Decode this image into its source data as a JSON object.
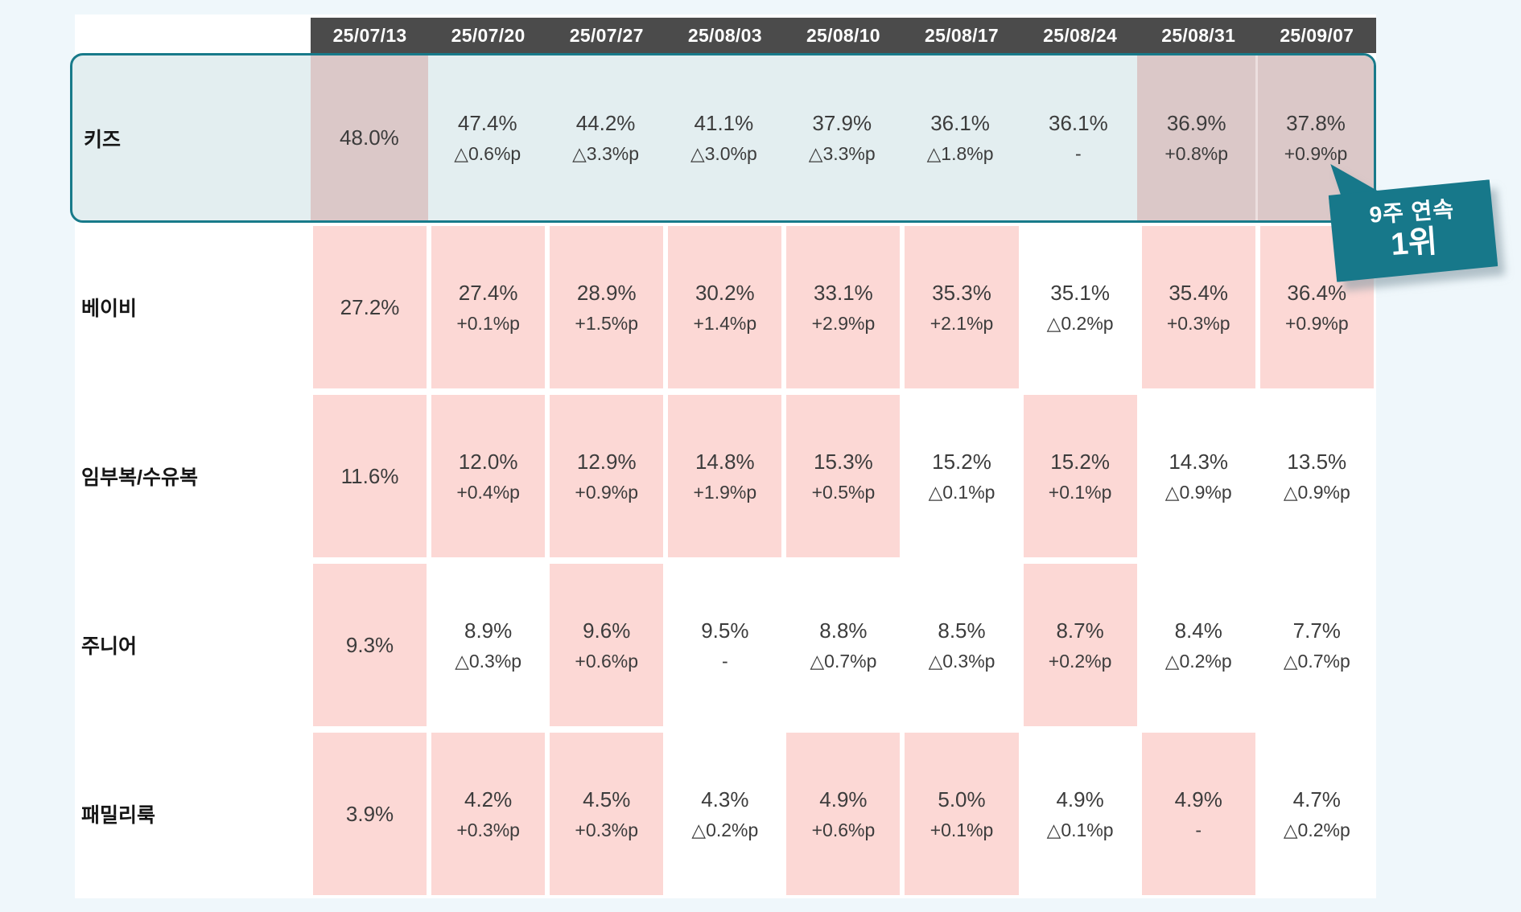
{
  "badge": {
    "line1": "9주 연속",
    "line2": "1위"
  },
  "colors": {
    "page_bg": "#eff7fb",
    "header_bg": "#4b4b4b",
    "header_text": "#ffffff",
    "kids_row_bg": "#e3eef0",
    "kids_highlight_cell": "#dbc8c8",
    "pink_highlight_cell": "#fcd8d5",
    "accent_teal": "#17788a",
    "value_text": "#3c3c3c"
  },
  "table": {
    "columns": [
      "25/07/13",
      "25/07/20",
      "25/07/27",
      "25/08/03",
      "25/08/10",
      "25/08/17",
      "25/08/24",
      "25/08/31",
      "25/09/07"
    ],
    "rows": [
      {
        "label": "키즈",
        "kids": true,
        "cells": [
          {
            "v": "48.0%",
            "d": "",
            "hl": true
          },
          {
            "v": "47.4%",
            "d": "△0.6%p",
            "hl": false
          },
          {
            "v": "44.2%",
            "d": "△3.3%p",
            "hl": false
          },
          {
            "v": "41.1%",
            "d": "△3.0%p",
            "hl": false
          },
          {
            "v": "37.9%",
            "d": "△3.3%p",
            "hl": false
          },
          {
            "v": "36.1%",
            "d": "△1.8%p",
            "hl": false
          },
          {
            "v": "36.1%",
            "d": "-",
            "hl": false
          },
          {
            "v": "36.9%",
            "d": "+0.8%p",
            "hl": true
          },
          {
            "v": "37.8%",
            "d": "+0.9%p",
            "hl": true
          }
        ]
      },
      {
        "label": "베이비",
        "kids": false,
        "cells": [
          {
            "v": "27.2%",
            "d": "",
            "hl": true
          },
          {
            "v": "27.4%",
            "d": "+0.1%p",
            "hl": true
          },
          {
            "v": "28.9%",
            "d": "+1.5%p",
            "hl": true
          },
          {
            "v": "30.2%",
            "d": "+1.4%p",
            "hl": true
          },
          {
            "v": "33.1%",
            "d": "+2.9%p",
            "hl": true
          },
          {
            "v": "35.3%",
            "d": "+2.1%p",
            "hl": true
          },
          {
            "v": "35.1%",
            "d": "△0.2%p",
            "hl": false
          },
          {
            "v": "35.4%",
            "d": "+0.3%p",
            "hl": true
          },
          {
            "v": "36.4%",
            "d": "+0.9%p",
            "hl": true
          }
        ]
      },
      {
        "label": "임부복/수유복",
        "kids": false,
        "cells": [
          {
            "v": "11.6%",
            "d": "",
            "hl": true
          },
          {
            "v": "12.0%",
            "d": "+0.4%p",
            "hl": true
          },
          {
            "v": "12.9%",
            "d": "+0.9%p",
            "hl": true
          },
          {
            "v": "14.8%",
            "d": "+1.9%p",
            "hl": true
          },
          {
            "v": "15.3%",
            "d": "+0.5%p",
            "hl": true
          },
          {
            "v": "15.2%",
            "d": "△0.1%p",
            "hl": false
          },
          {
            "v": "15.2%",
            "d": "+0.1%p",
            "hl": true
          },
          {
            "v": "14.3%",
            "d": "△0.9%p",
            "hl": false
          },
          {
            "v": "13.5%",
            "d": "△0.9%p",
            "hl": false
          }
        ]
      },
      {
        "label": "주니어",
        "kids": false,
        "cells": [
          {
            "v": "9.3%",
            "d": "",
            "hl": true
          },
          {
            "v": "8.9%",
            "d": "△0.3%p",
            "hl": false
          },
          {
            "v": "9.6%",
            "d": "+0.6%p",
            "hl": true
          },
          {
            "v": "9.5%",
            "d": "-",
            "hl": false
          },
          {
            "v": "8.8%",
            "d": "△0.7%p",
            "hl": false
          },
          {
            "v": "8.5%",
            "d": "△0.3%p",
            "hl": false
          },
          {
            "v": "8.7%",
            "d": "+0.2%p",
            "hl": true
          },
          {
            "v": "8.4%",
            "d": "△0.2%p",
            "hl": false
          },
          {
            "v": "7.7%",
            "d": "△0.7%p",
            "hl": false
          }
        ]
      },
      {
        "label": "패밀리룩",
        "kids": false,
        "cells": [
          {
            "v": "3.9%",
            "d": "",
            "hl": true
          },
          {
            "v": "4.2%",
            "d": "+0.3%p",
            "hl": true
          },
          {
            "v": "4.5%",
            "d": "+0.3%p",
            "hl": true
          },
          {
            "v": "4.3%",
            "d": "△0.2%p",
            "hl": false
          },
          {
            "v": "4.9%",
            "d": "+0.6%p",
            "hl": true
          },
          {
            "v": "5.0%",
            "d": "+0.1%p",
            "hl": true
          },
          {
            "v": "4.9%",
            "d": "△0.1%p",
            "hl": false
          },
          {
            "v": "4.9%",
            "d": "-",
            "hl": true
          },
          {
            "v": "4.7%",
            "d": "△0.2%p",
            "hl": false
          }
        ]
      }
    ]
  },
  "chart_data": {
    "type": "table",
    "columns": [
      "25/07/13",
      "25/07/20",
      "25/07/27",
      "25/08/03",
      "25/08/10",
      "25/08/17",
      "25/08/24",
      "25/08/31",
      "25/09/07"
    ],
    "series": [
      {
        "name": "키즈",
        "values": [
          48.0,
          47.4,
          44.2,
          41.1,
          37.9,
          36.1,
          36.1,
          36.9,
          37.8
        ],
        "deltas": [
          "",
          "△0.6%p",
          "△3.3%p",
          "△3.0%p",
          "△3.3%p",
          "△1.8%p",
          "-",
          "+0.8%p",
          "+0.9%p"
        ]
      },
      {
        "name": "베이비",
        "values": [
          27.2,
          27.4,
          28.9,
          30.2,
          33.1,
          35.3,
          35.1,
          35.4,
          36.4
        ],
        "deltas": [
          "",
          "+0.1%p",
          "+1.5%p",
          "+1.4%p",
          "+2.9%p",
          "+2.1%p",
          "△0.2%p",
          "+0.3%p",
          "+0.9%p"
        ]
      },
      {
        "name": "임부복/수유복",
        "values": [
          11.6,
          12.0,
          12.9,
          14.8,
          15.3,
          15.2,
          15.2,
          14.3,
          13.5
        ],
        "deltas": [
          "",
          "+0.4%p",
          "+0.9%p",
          "+1.9%p",
          "+0.5%p",
          "△0.1%p",
          "+0.1%p",
          "△0.9%p",
          "△0.9%p"
        ]
      },
      {
        "name": "주니어",
        "values": [
          9.3,
          8.9,
          9.6,
          9.5,
          8.8,
          8.5,
          8.7,
          8.4,
          7.7
        ],
        "deltas": [
          "",
          "△0.3%p",
          "+0.6%p",
          "-",
          "△0.7%p",
          "△0.3%p",
          "+0.2%p",
          "△0.2%p",
          "△0.7%p"
        ]
      },
      {
        "name": "패밀리룩",
        "values": [
          3.9,
          4.2,
          4.5,
          4.3,
          4.9,
          5.0,
          4.9,
          4.9,
          4.7
        ],
        "deltas": [
          "",
          "+0.3%p",
          "+0.3%p",
          "△0.2%p",
          "+0.6%p",
          "+0.1%p",
          "△0.1%p",
          "-",
          "△0.2%p"
        ]
      }
    ],
    "units": "%",
    "annotation": "9주 연속 1위 (키즈)"
  }
}
